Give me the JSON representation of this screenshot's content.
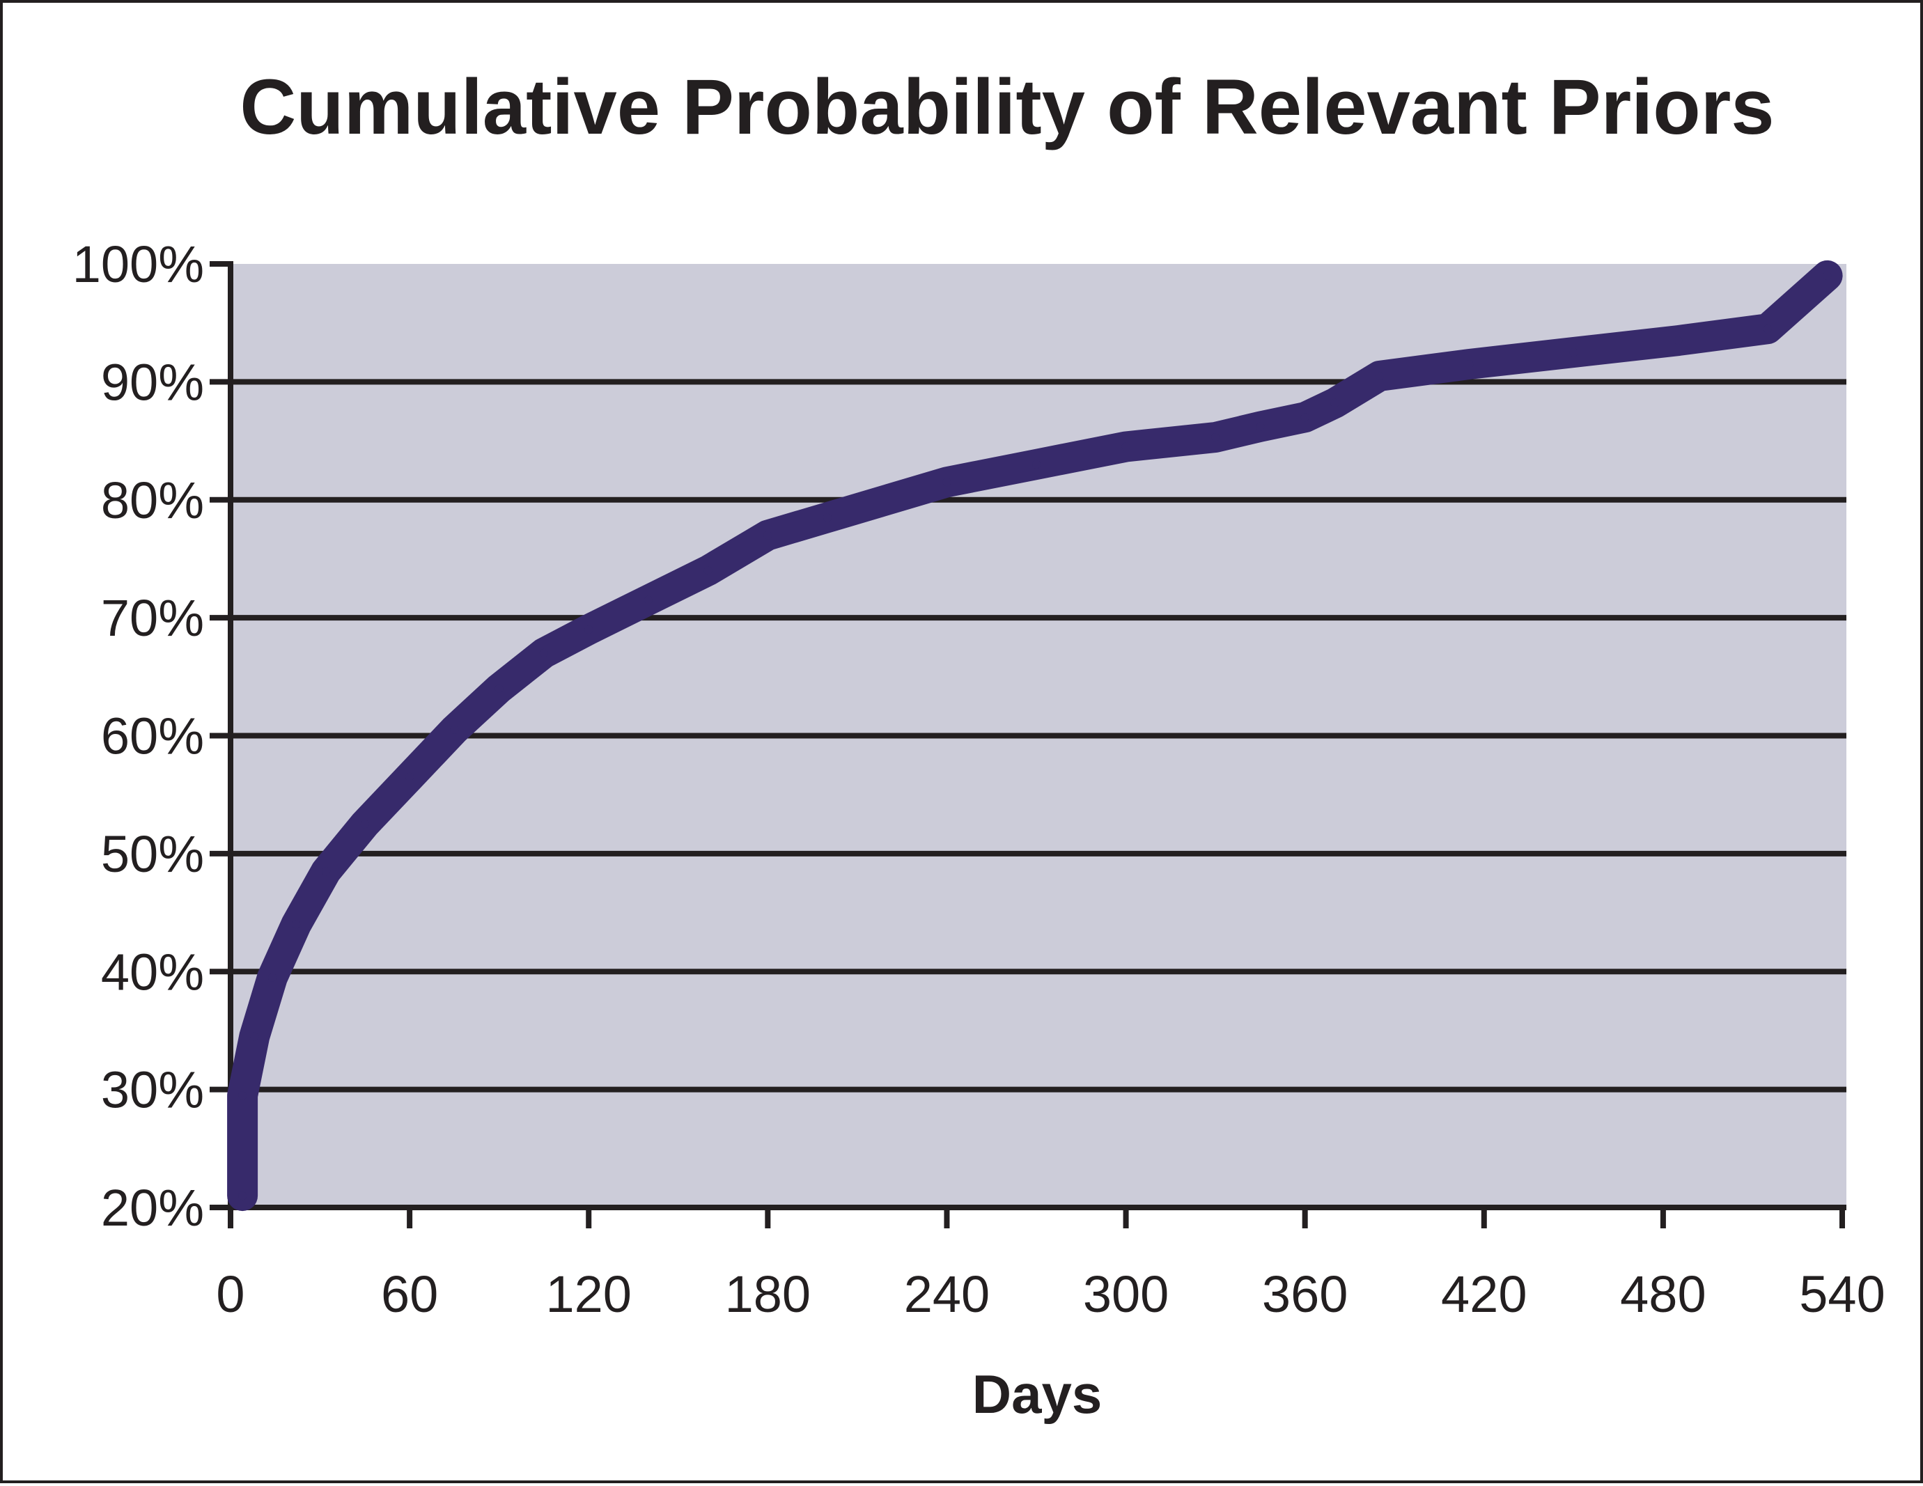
{
  "chart_data": {
    "type": "line",
    "title": "Cumulative Probability of Relevant Priors",
    "xlabel": "Days",
    "ylabel": "",
    "x_ticks": [
      0,
      60,
      120,
      180,
      240,
      300,
      360,
      420,
      480,
      540
    ],
    "x_tick_labels": [
      "0",
      "60",
      "120",
      "180",
      "240",
      "300",
      "360",
      "420",
      "480",
      "540"
    ],
    "y_ticks": [
      20,
      30,
      40,
      50,
      60,
      70,
      80,
      90,
      100
    ],
    "y_tick_labels": [
      "20%",
      "30%",
      "40%",
      "50%",
      "60%",
      "70%",
      "80%",
      "90%",
      "100%"
    ],
    "xlim": [
      0,
      540
    ],
    "ylim": [
      20,
      100
    ],
    "grid": true,
    "series": [
      {
        "x": [
          4,
          4,
          8,
          14,
          22,
          32,
          45,
          60,
          75,
          90,
          105,
          120,
          140,
          160,
          180,
          200,
          240,
          270,
          300,
          330,
          345,
          360,
          370,
          385,
          415,
          450,
          485,
          515,
          535
        ],
        "y": [
          21,
          29.5,
          34.5,
          39.5,
          44,
          48.5,
          52.5,
          56.5,
          60.5,
          64,
          67,
          69,
          71.5,
          74,
          77,
          78.5,
          81.5,
          83,
          84.5,
          85.3,
          86.2,
          87,
          88.2,
          90.5,
          91.5,
          92.5,
          93.5,
          94.5,
          99
        ]
      }
    ],
    "colors": {
      "line": "#372a6b",
      "plot_background": "#ccccd9",
      "grid": "#231f20",
      "text": "#231f20"
    }
  }
}
